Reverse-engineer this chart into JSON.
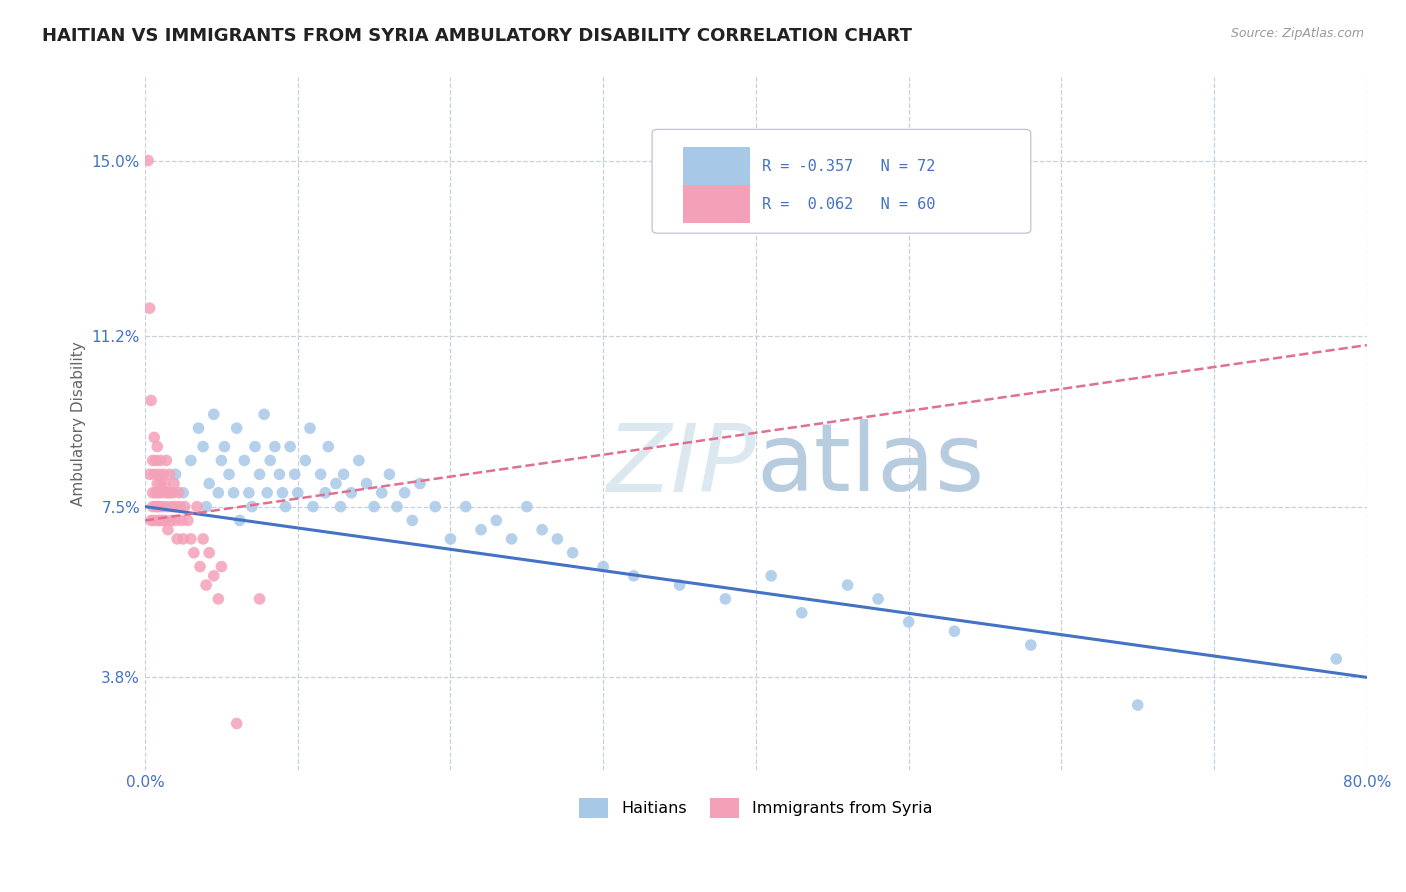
{
  "title": "HAITIAN VS IMMIGRANTS FROM SYRIA AMBULATORY DISABILITY CORRELATION CHART",
  "source": "Source: ZipAtlas.com",
  "ylabel": "Ambulatory Disability",
  "xlim": [
    0.0,
    0.8
  ],
  "ylim": [
    0.018,
    0.168
  ],
  "yticks": [
    0.038,
    0.075,
    0.112,
    0.15
  ],
  "ytick_labels": [
    "3.8%",
    "7.5%",
    "11.2%",
    "15.0%"
  ],
  "xticks": [
    0.0,
    0.1,
    0.2,
    0.3,
    0.4,
    0.5,
    0.6,
    0.7,
    0.8
  ],
  "xtick_labels": [
    "0.0%",
    "",
    "",
    "",
    "",
    "",
    "",
    "",
    "80.0%"
  ],
  "haitians": {
    "name": "Haitians",
    "R": -0.357,
    "N": 72,
    "color": "#a8c8e8",
    "trend_color": "#4472c4",
    "trend_style": "solid",
    "x": [
      0.02,
      0.025,
      0.03,
      0.035,
      0.038,
      0.04,
      0.042,
      0.045,
      0.048,
      0.05,
      0.052,
      0.055,
      0.058,
      0.06,
      0.062,
      0.065,
      0.068,
      0.07,
      0.072,
      0.075,
      0.078,
      0.08,
      0.082,
      0.085,
      0.088,
      0.09,
      0.092,
      0.095,
      0.098,
      0.1,
      0.105,
      0.108,
      0.11,
      0.115,
      0.118,
      0.12,
      0.125,
      0.128,
      0.13,
      0.135,
      0.14,
      0.145,
      0.15,
      0.155,
      0.16,
      0.165,
      0.17,
      0.175,
      0.18,
      0.19,
      0.2,
      0.21,
      0.22,
      0.23,
      0.24,
      0.25,
      0.26,
      0.27,
      0.28,
      0.3,
      0.32,
      0.35,
      0.38,
      0.41,
      0.43,
      0.46,
      0.48,
      0.5,
      0.53,
      0.58,
      0.65,
      0.78
    ],
    "y": [
      0.082,
      0.078,
      0.085,
      0.092,
      0.088,
      0.075,
      0.08,
      0.095,
      0.078,
      0.085,
      0.088,
      0.082,
      0.078,
      0.092,
      0.072,
      0.085,
      0.078,
      0.075,
      0.088,
      0.082,
      0.095,
      0.078,
      0.085,
      0.088,
      0.082,
      0.078,
      0.075,
      0.088,
      0.082,
      0.078,
      0.085,
      0.092,
      0.075,
      0.082,
      0.078,
      0.088,
      0.08,
      0.075,
      0.082,
      0.078,
      0.085,
      0.08,
      0.075,
      0.078,
      0.082,
      0.075,
      0.078,
      0.072,
      0.08,
      0.075,
      0.068,
      0.075,
      0.07,
      0.072,
      0.068,
      0.075,
      0.07,
      0.068,
      0.065,
      0.062,
      0.06,
      0.058,
      0.055,
      0.06,
      0.052,
      0.058,
      0.055,
      0.05,
      0.048,
      0.045,
      0.032,
      0.042
    ]
  },
  "syria": {
    "name": "Immigrants from Syria",
    "R": 0.062,
    "N": 60,
    "color": "#f4a0b8",
    "trend_color": "#e07090",
    "trend_style": "dashed",
    "x": [
      0.002,
      0.003,
      0.003,
      0.004,
      0.004,
      0.005,
      0.005,
      0.005,
      0.006,
      0.006,
      0.006,
      0.007,
      0.007,
      0.007,
      0.008,
      0.008,
      0.008,
      0.009,
      0.009,
      0.009,
      0.01,
      0.01,
      0.01,
      0.011,
      0.011,
      0.012,
      0.012,
      0.013,
      0.013,
      0.014,
      0.014,
      0.015,
      0.015,
      0.016,
      0.016,
      0.017,
      0.018,
      0.018,
      0.019,
      0.02,
      0.02,
      0.021,
      0.022,
      0.023,
      0.024,
      0.025,
      0.026,
      0.028,
      0.03,
      0.032,
      0.034,
      0.036,
      0.038,
      0.04,
      0.042,
      0.045,
      0.048,
      0.05,
      0.06,
      0.075
    ],
    "y": [
      0.15,
      0.118,
      0.082,
      0.098,
      0.072,
      0.078,
      0.085,
      0.075,
      0.082,
      0.09,
      0.072,
      0.078,
      0.085,
      0.075,
      0.08,
      0.088,
      0.075,
      0.082,
      0.072,
      0.078,
      0.08,
      0.075,
      0.085,
      0.078,
      0.072,
      0.082,
      0.075,
      0.08,
      0.072,
      0.078,
      0.085,
      0.075,
      0.07,
      0.078,
      0.082,
      0.072,
      0.078,
      0.075,
      0.08,
      0.075,
      0.072,
      0.068,
      0.078,
      0.075,
      0.072,
      0.068,
      0.075,
      0.072,
      0.068,
      0.065,
      0.075,
      0.062,
      0.068,
      0.058,
      0.065,
      0.06,
      0.055,
      0.062,
      0.028,
      0.055
    ]
  },
  "legend_R_color": "#4472c4",
  "title_fontsize": 13,
  "axis_label_fontsize": 11,
  "tick_fontsize": 11,
  "background_color": "#ffffff",
  "grid_color": "#c8d0dc",
  "watermark_color": "#dce8f0",
  "watermark_alpha": 0.9
}
